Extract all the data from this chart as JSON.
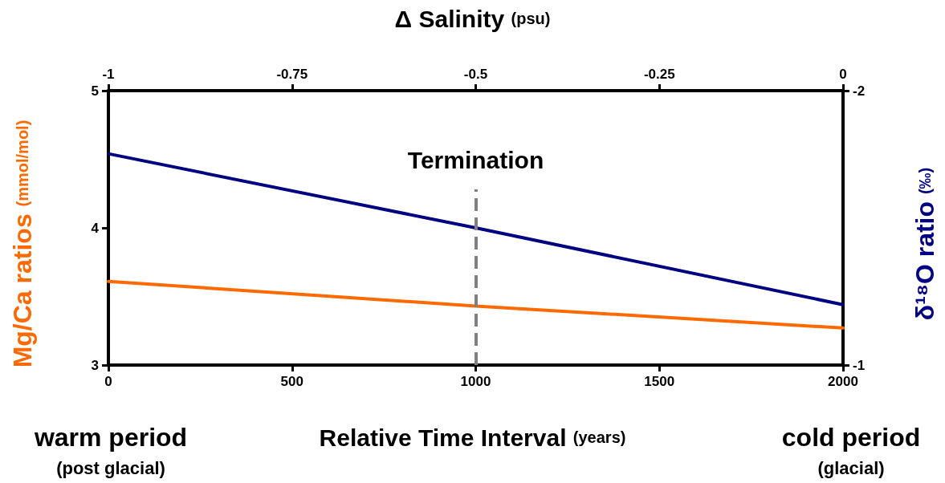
{
  "chart_data": {
    "type": "line",
    "xlabel": "Relative Time Interval (years)",
    "ylabel": "Mg/Ca ratios (mmol/mol)",
    "y2label": "δ¹⁸O ratio (‰)",
    "x2label": "Δ Salinity (psu)",
    "x": [
      0,
      1000,
      2000
    ],
    "series": [
      {
        "color": "#ff6a00",
        "values": [
          3.61,
          3.43,
          3.27
        ]
      },
      {
        "color": "#000080",
        "axis": "y2",
        "values": [
          -1.77,
          -1.5,
          -1.22
        ]
      }
    ],
    "xlim": [
      0,
      2000
    ],
    "xticks": [
      0,
      500,
      1000,
      1500,
      2000
    ],
    "ylim": [
      3,
      5
    ],
    "yticks": [
      3,
      4,
      5
    ],
    "y2lim": [
      -1,
      -2
    ],
    "y2ticks": [
      -1,
      -2
    ],
    "x2lim": [
      -1,
      0
    ],
    "x2ticks": [
      -1,
      -0.75,
      -0.5,
      -0.25,
      0
    ],
    "ref_lines": [
      {
        "axis": "x",
        "value": 1000,
        "label": "Termination",
        "color": "#808080",
        "line_style": "dashed"
      }
    ],
    "annotations": [
      "warm period",
      "(post glacial)",
      "cold period",
      "(glacial)"
    ],
    "grid": false,
    "marker": "none",
    "line_style": "solid"
  }
}
